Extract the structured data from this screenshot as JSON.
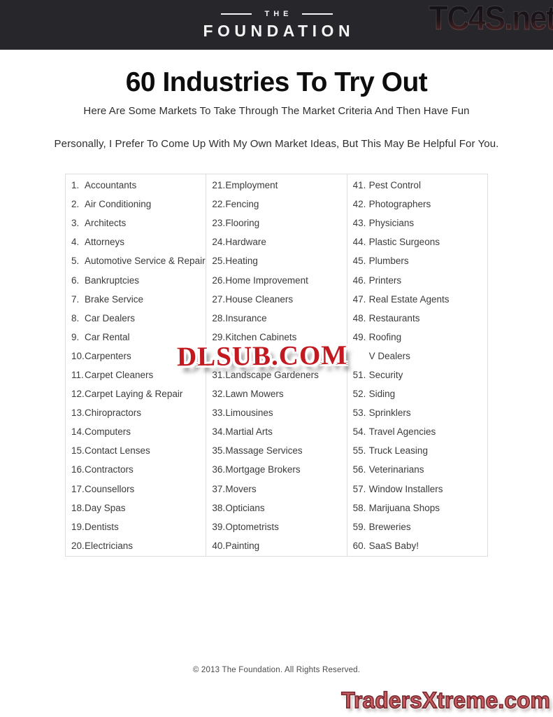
{
  "header": {
    "logo_the": "THE",
    "logo_foundation": "FOUNDATION"
  },
  "watermarks": {
    "top_right": "TC4S.net",
    "center": "DLSUB.COM",
    "bottom_right": "TradersXtreme.com"
  },
  "main": {
    "title": "60 Industries To Try Out",
    "subtitle": "Here Are Some Markets To Take Through The Market Criteria And Then Have Fun",
    "note": "Personally, I Prefer To Come Up With My Own Market Ideas, But This May Be Helpful For You."
  },
  "list": {
    "columns": [
      {
        "items": [
          {
            "n": "1.",
            "label": "Accountants"
          },
          {
            "n": "2.",
            "label": "Air Conditioning"
          },
          {
            "n": "3.",
            "label": "Architects"
          },
          {
            "n": "4.",
            "label": "Attorneys"
          },
          {
            "n": "5.",
            "label": "Automotive Service & Repair"
          },
          {
            "n": "6.",
            "label": "Bankruptcies"
          },
          {
            "n": "7.",
            "label": "Brake Service"
          },
          {
            "n": "8.",
            "label": "Car Dealers"
          },
          {
            "n": "9.",
            "label": "Car Rental"
          },
          {
            "n": "10.",
            "label": "Carpenters"
          },
          {
            "n": "11.",
            "label": "Carpet Cleaners"
          },
          {
            "n": "12.",
            "label": "Carpet Laying & Repair"
          },
          {
            "n": "13.",
            "label": "Chiropractors"
          },
          {
            "n": "14.",
            "label": "Computers"
          },
          {
            "n": "15.",
            "label": "Contact Lenses"
          },
          {
            "n": "16.",
            "label": "Contractors"
          },
          {
            "n": "17.",
            "label": "Counsellors"
          },
          {
            "n": "18.",
            "label": "Day Spas"
          },
          {
            "n": "19.",
            "label": "Dentists"
          },
          {
            "n": "20.",
            "label": "Electricians"
          }
        ]
      },
      {
        "items": [
          {
            "n": "21.",
            "label": "Employment"
          },
          {
            "n": "22.",
            "label": "Fencing"
          },
          {
            "n": "23.",
            "label": "Flooring"
          },
          {
            "n": "24.",
            "label": "Hardware"
          },
          {
            "n": "25.",
            "label": "Heating"
          },
          {
            "n": "26.",
            "label": "Home Improvement"
          },
          {
            "n": "27.",
            "label": "House Cleaners"
          },
          {
            "n": "28.",
            "label": "Insurance"
          },
          {
            "n": "29.",
            "label": "Kitchen Cabinets"
          },
          {
            "n": "",
            "label": ""
          },
          {
            "n": "31.",
            "label": "Landscape Gardeners"
          },
          {
            "n": "32.",
            "label": "Lawn Mowers"
          },
          {
            "n": "33.",
            "label": "Limousines"
          },
          {
            "n": "34.",
            "label": "Martial Arts"
          },
          {
            "n": "35.",
            "label": "Massage Services"
          },
          {
            "n": "36.",
            "label": "Mortgage Brokers"
          },
          {
            "n": "37.",
            "label": "Movers"
          },
          {
            "n": "38.",
            "label": "Opticians"
          },
          {
            "n": "39.",
            "label": "Optometrists"
          },
          {
            "n": "40.",
            "label": "Painting"
          }
        ]
      },
      {
        "items": [
          {
            "n": "41.",
            "label": "Pest Control"
          },
          {
            "n": "42.",
            "label": "Photographers"
          },
          {
            "n": "43.",
            "label": "Physicians"
          },
          {
            "n": "44.",
            "label": "Plastic Surgeons"
          },
          {
            "n": "45.",
            "label": "Plumbers"
          },
          {
            "n": "46.",
            "label": "Printers"
          },
          {
            "n": "47.",
            "label": "Real Estate Agents"
          },
          {
            "n": "48.",
            "label": "Restaurants"
          },
          {
            "n": "49.",
            "label": "Roofing"
          },
          {
            "n": "",
            "label": "V Dealers"
          },
          {
            "n": "51.",
            "label": "Security"
          },
          {
            "n": "52.",
            "label": "Siding"
          },
          {
            "n": "53.",
            "label": "Sprinklers"
          },
          {
            "n": "54.",
            "label": "Travel Agencies"
          },
          {
            "n": "55.",
            "label": "Truck Leasing"
          },
          {
            "n": "56.",
            "label": "Veterinarians"
          },
          {
            "n": "57.",
            "label": "Window Installers"
          },
          {
            "n": "58.",
            "label": "Marijuana Shops"
          },
          {
            "n": "59.",
            "label": "Breweries"
          },
          {
            "n": "60.",
            "label": "SaaS Baby!"
          }
        ]
      }
    ]
  },
  "footer": {
    "copyright": "© 2013 The Foundation. All Rights Reserved."
  },
  "colors": {
    "header_bg": "#27262b",
    "table_border": "#dddddd",
    "item_text": "#3b3b3b",
    "wm_center_red": "#c2181f",
    "wm_bottom_pink": "#c65c60"
  }
}
